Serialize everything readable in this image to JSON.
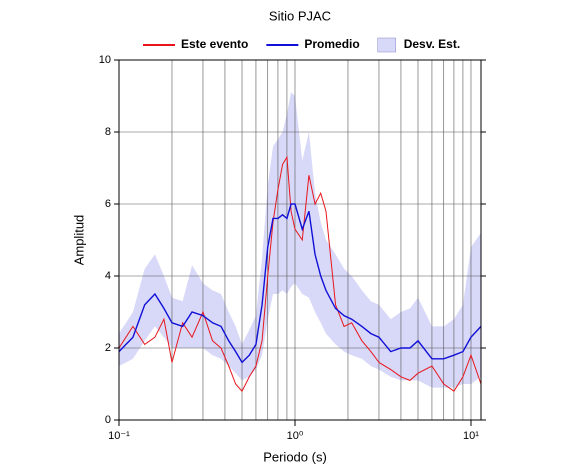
{
  "chart_data": {
    "type": "line",
    "title": "Sitio PJAC",
    "xlabel": "Periodo (s)",
    "ylabel": "Amplitud",
    "xscale": "log",
    "grid": true,
    "xlim": [
      0.1,
      11.4
    ],
    "ylim": [
      0,
      10
    ],
    "xticks": [
      {
        "value": 0.1,
        "label": "10⁻¹"
      },
      {
        "value": 1,
        "label": "10⁰"
      },
      {
        "value": 10,
        "label": "10¹"
      }
    ],
    "yticks": [
      0,
      2,
      4,
      6,
      8,
      10
    ],
    "x": [
      0.1,
      0.12,
      0.14,
      0.16,
      0.18,
      0.2,
      0.23,
      0.26,
      0.3,
      0.34,
      0.38,
      0.42,
      0.46,
      0.5,
      0.55,
      0.6,
      0.65,
      0.7,
      0.75,
      0.8,
      0.85,
      0.9,
      0.95,
      1.0,
      1.1,
      1.2,
      1.3,
      1.4,
      1.5,
      1.7,
      1.9,
      2.1,
      2.4,
      2.7,
      3,
      3.5,
      4,
      4.5,
      5,
      6,
      7,
      8,
      9,
      10,
      11.4
    ],
    "series": [
      {
        "name": "Este evento",
        "color": "#e8161c",
        "values": [
          2.0,
          2.6,
          2.1,
          2.3,
          2.8,
          1.6,
          2.7,
          2.3,
          3.0,
          2.2,
          2.0,
          1.5,
          1.0,
          0.8,
          1.2,
          1.5,
          2.2,
          4.0,
          5.5,
          6.4,
          7.1,
          7.3,
          5.8,
          5.3,
          5.0,
          6.8,
          6.0,
          6.3,
          5.8,
          3.2,
          2.6,
          2.7,
          2.2,
          1.9,
          1.6,
          1.4,
          1.2,
          1.1,
          1.3,
          1.5,
          1.0,
          0.8,
          1.2,
          1.8,
          1.0
        ]
      },
      {
        "name": "Promedio",
        "color": "#1010d8",
        "values": [
          1.9,
          2.3,
          3.2,
          3.5,
          3.1,
          2.7,
          2.6,
          3.0,
          2.9,
          2.7,
          2.6,
          2.2,
          1.9,
          1.6,
          1.8,
          2.1,
          3.2,
          4.8,
          5.6,
          5.6,
          5.7,
          5.6,
          6.0,
          6.0,
          5.3,
          5.8,
          4.6,
          4.0,
          3.6,
          3.1,
          2.9,
          2.8,
          2.6,
          2.4,
          2.3,
          1.9,
          2.0,
          2.0,
          2.2,
          1.7,
          1.7,
          1.8,
          1.9,
          2.3,
          2.6
        ]
      },
      {
        "name": "Desv. Est.",
        "color": "#d8d8f8",
        "type": "band",
        "lower": [
          1.5,
          1.7,
          2.2,
          2.6,
          2.3,
          2.0,
          2.0,
          2.0,
          2.0,
          1.8,
          1.7,
          1.5,
          1.3,
          1.1,
          1.2,
          1.4,
          1.8,
          2.8,
          3.5,
          3.5,
          3.6,
          3.5,
          3.7,
          3.8,
          3.5,
          3.4,
          3.0,
          2.7,
          2.4,
          2.1,
          1.9,
          1.8,
          1.7,
          1.5,
          1.4,
          1.2,
          1.1,
          1.1,
          1.1,
          0.9,
          0.9,
          0.9,
          1.0,
          1.0,
          1.2
        ],
        "upper": [
          2.4,
          3.0,
          4.2,
          4.6,
          4.0,
          3.4,
          3.3,
          4.3,
          3.8,
          3.6,
          3.5,
          3.0,
          2.6,
          2.1,
          2.5,
          2.9,
          4.5,
          6.5,
          7.6,
          7.8,
          8.0,
          8.5,
          9.1,
          9.0,
          7.2,
          8.0,
          6.3,
          5.5,
          5.0,
          4.6,
          4.2,
          4.0,
          3.6,
          3.3,
          3.2,
          2.8,
          3.0,
          3.1,
          3.4,
          2.6,
          2.6,
          2.8,
          3.2,
          4.8,
          5.2
        ]
      }
    ]
  }
}
